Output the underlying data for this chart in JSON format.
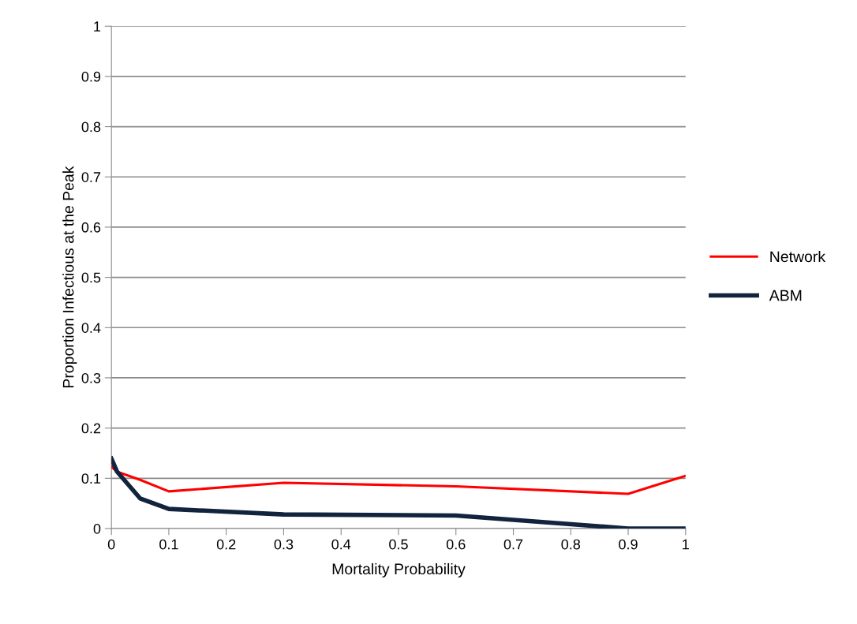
{
  "chart_data": {
    "type": "line",
    "xlabel": "Mortality Probability",
    "ylabel": "Proportion Infectious at the Peak",
    "x": [
      0,
      0.01,
      0.05,
      0.1,
      0.3,
      0.6,
      0.9,
      1
    ],
    "series": [
      {
        "name": "Network",
        "color": "#ff0000",
        "values": [
          0.123,
          0.113,
          0.097,
          0.074,
          0.091,
          0.084,
          0.069,
          0.105
        ]
      },
      {
        "name": "ABM",
        "color": "#12243d",
        "values": [
          0.139,
          0.113,
          0.06,
          0.039,
          0.028,
          0.026,
          0,
          0
        ]
      }
    ],
    "xlim": [
      0,
      1
    ],
    "ylim": [
      0,
      1
    ],
    "xticks": [
      0,
      0.1,
      0.2,
      0.3,
      0.4,
      0.5,
      0.6,
      0.7,
      0.8,
      0.9,
      1
    ],
    "yticks": [
      0,
      0.1,
      0.2,
      0.3,
      0.4,
      0.5,
      0.6,
      0.7,
      0.8,
      0.9,
      1
    ],
    "grid": "y",
    "legend": "right",
    "marker": "none",
    "line_style": "solid"
  }
}
